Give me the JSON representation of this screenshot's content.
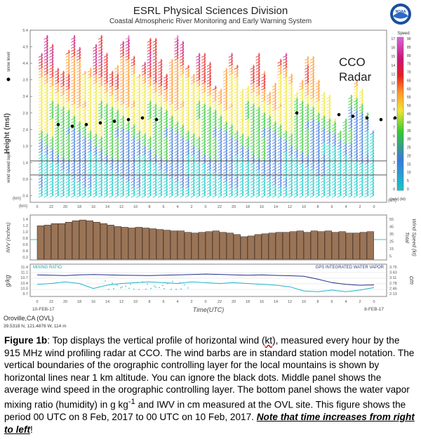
{
  "header": {
    "title": "ESRL Physical Sciences Division",
    "subtitle": "Coastal Atmospheric River Monitoring and Early Warning System",
    "logo_text": "NOAA"
  },
  "site": {
    "name": "Oroville,CA (OVL)",
    "coords": "39.5318 N, 121.4876 W, 114 m"
  },
  "chart_data": [
    {
      "type": "heatmap",
      "name": "wind-profile",
      "annotation": "CCO Radar",
      "ylabel": "Height (msl)",
      "yunit_label": "(km)",
      "y_ticks": [
        "5.4",
        "4.9",
        "4.4",
        "3.9",
        "3.4",
        "2.9",
        "2.4",
        "1.9",
        "1.4",
        "0.9",
        "0.4"
      ],
      "ylim": [
        0.2,
        5.4
      ],
      "side_labels": [
        "snow level",
        "wind speed layer"
      ],
      "x_ticks": [
        "0",
        "22",
        "20",
        "18",
        "16",
        "14",
        "12",
        "10",
        "8",
        "6",
        "4",
        "2",
        "0",
        "22",
        "20",
        "18",
        "16",
        "14",
        "12",
        "10",
        "8",
        "6",
        "4",
        "2",
        "0"
      ],
      "colorbar": {
        "title": "Speed",
        "unit_left": "(kt)",
        "unit_right": "(m/s)",
        "kt_ticks": [
          "90",
          "85",
          "80",
          "75",
          "70",
          "65",
          "60",
          "55",
          "50",
          "45",
          "40",
          "35",
          "30",
          "25",
          "20",
          "15",
          "10",
          "5",
          "0"
        ],
        "ms_ticks": [
          "17",
          "16",
          "15",
          "14",
          "13",
          "12",
          "11",
          "10",
          "9",
          "8",
          "7",
          "6",
          "5",
          "4",
          "3",
          "2",
          "1",
          "0"
        ]
      },
      "layer_lines_km": [
        1.3,
        0.85
      ],
      "snow_level_km": [
        2.55,
        2.5,
        2.55,
        2.6,
        2.65,
        2.7,
        2.75,
        2.7,
        null,
        null,
        null,
        null,
        null,
        null,
        null,
        null,
        null,
        2.9,
        null,
        null,
        2.85,
        2.8,
        2.75,
        2.7,
        2.75
      ]
    },
    {
      "type": "bar",
      "name": "layer-wind-speed",
      "ylabel": "Wind Speed (kt)",
      "ylabel_left": "IWV (inches)",
      "left_ticks": [
        "1.4",
        "1.2",
        "1.0",
        "0.8",
        "0.6",
        "0.4",
        "0.2"
      ],
      "right_ticks": [
        "55",
        "45",
        "35",
        "25",
        "15",
        "5"
      ],
      "values": [
        46,
        47,
        49,
        49,
        51,
        53,
        54,
        53,
        51,
        49,
        47,
        45,
        44,
        43,
        44,
        43,
        42,
        41,
        40,
        39,
        39,
        37,
        36,
        37,
        38,
        39,
        37,
        36,
        34,
        31,
        32,
        34,
        35,
        36,
        37,
        37,
        38,
        39,
        37,
        39,
        38,
        39,
        37,
        38,
        36,
        36,
        37,
        38
      ],
      "ylim": [
        0,
        58
      ]
    },
    {
      "type": "line",
      "name": "mixing-ratio-iwv",
      "legend": [
        "MIXING RATIO",
        "GPS INTEGRATED WATER VAPOR"
      ],
      "ylabel": "g/kg",
      "ylabel_right": "cm",
      "left_ticks": [
        "11.4",
        "11.1",
        "10.7",
        "10.4",
        "10.0",
        "9.7"
      ],
      "right_ticks": [
        "3.76",
        "3.43",
        "3.11",
        "2.78",
        "2.46",
        "2.13"
      ],
      "x_ticks": [
        "0",
        "22",
        "20",
        "18",
        "16",
        "14",
        "12",
        "10",
        "8",
        "6",
        "4",
        "2",
        "0",
        "22",
        "20",
        "18",
        "16",
        "14",
        "12",
        "10",
        "8",
        "6",
        "4",
        "2",
        "0"
      ],
      "date_start": "10-FEB-17",
      "date_end": "8-FEB-17",
      "xlabel": "Time(UTC)",
      "series": [
        {
          "name": "GPS INTEGRATED WATER VAPOR",
          "values": [
            3.3,
            3.28,
            3.26,
            3.3,
            3.32,
            3.3,
            3.28,
            3.27,
            3.26,
            3.28,
            3.3,
            3.32,
            3.35,
            3.33,
            3.3,
            3.28,
            3.3,
            3.27,
            3.25,
            3.22,
            3.05,
            2.85,
            2.75,
            2.7,
            2.72
          ]
        },
        {
          "name": "MIXING RATIO",
          "values": [
            10.35,
            10.4,
            10.5,
            10.4,
            10.1,
            10.3,
            10.4,
            10.45,
            10.5,
            10.45,
            10.4,
            10.5,
            10.45,
            10.4,
            10.45,
            10.4,
            10.35,
            10.3,
            10.2,
            9.95,
            9.9,
            10.0,
            9.9,
            10.0,
            10.15
          ]
        }
      ]
    }
  ],
  "caption": {
    "label": "Figure 1b",
    "p1": ": Top displays the vertical profile of horizontal wind (",
    "kt": "kt",
    "p2": "), measured every hour by the 915 MHz wind profiling radar at CCO. The wind barbs are in standard station model notation. The vertical boundaries of the orographic controlling layer for the local mountains is shown by horizontal lines near 1 km altitude. You can ignore the black dots. Middle panel shows the average wind speed in the orographic controlling layer. The bottom panel shows the water vapor mixing ratio (humidity) in g kg",
    "sup1": "-1",
    "p3": " and IWV in cm measured at the OVL site. This figure shows the period 00 UTC on 8 Feb, 2017 to 00 UTC on 10 Feb, 2017. ",
    "note": "Note that time increases from right to left",
    "end": "!"
  }
}
